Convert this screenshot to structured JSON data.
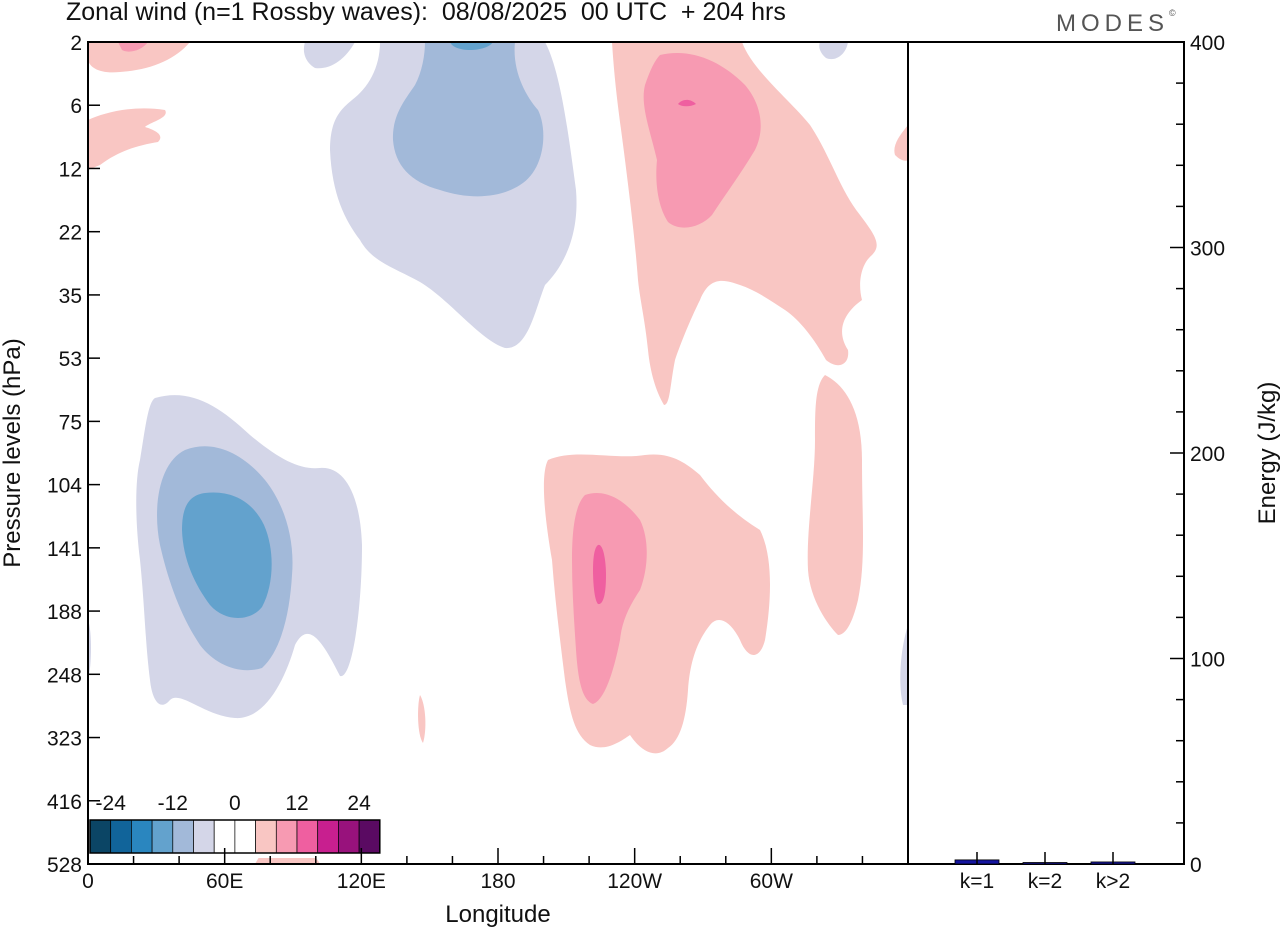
{
  "header": {
    "title": "Zonal wind (n=1 Rossby waves):  08/08/2025  00 UTC  + 204 hrs",
    "brand": "MODES",
    "brand_mark": "©"
  },
  "chart_data": [
    {
      "type": "contour",
      "title": "Zonal wind (n=1 Rossby waves):  08/08/2025  00 UTC  + 204 hrs",
      "xlabel": "Longitude",
      "ylabel": "Pressure levels (hPa)",
      "x_ticks": [
        "0",
        "60E",
        "120E",
        "180",
        "120W",
        "60W"
      ],
      "x_range_deg": [
        0,
        360
      ],
      "y_ticks": [
        "2",
        "6",
        "12",
        "22",
        "35",
        "53",
        "75",
        "104",
        "141",
        "188",
        "248",
        "323",
        "416",
        "528"
      ],
      "colorbar": {
        "labels": [
          "-24",
          "-12",
          "0",
          "12",
          "24"
        ],
        "colors": [
          "#0b4565",
          "#11649a",
          "#2a86bf",
          "#63a2cd",
          "#a2b9d9",
          "#d4d6e8",
          "#ffffff",
          "#ffffff",
          "#f9c6c3",
          "#f79ab2",
          "#ef5fa0",
          "#c81f8f",
          "#98127c",
          "#5a0a62"
        ]
      },
      "features": [
        {
          "sign": "negative",
          "center_lon_deg": 66,
          "center_level_hPa": 141,
          "peak": "about -15"
        },
        {
          "sign": "negative",
          "center_lon_deg": 168,
          "center_level_hPa": 6,
          "peak": "about -15"
        },
        {
          "sign": "positive",
          "center_lon_deg": 224,
          "center_level_hPa": 141,
          "peak": "about 9"
        },
        {
          "sign": "positive",
          "center_lon_deg": 263,
          "center_level_hPa": 6,
          "peak": "about 9"
        }
      ]
    },
    {
      "type": "bar",
      "ylabel": "Energy (J/kg)",
      "ylim": [
        0,
        400
      ],
      "y_ticks": [
        "0",
        "100",
        "200",
        "300",
        "400"
      ],
      "categories": [
        "k=1",
        "k=2",
        "k>2"
      ],
      "values": [
        2,
        0.3,
        1
      ],
      "bar_color": "#1515a0"
    }
  ]
}
